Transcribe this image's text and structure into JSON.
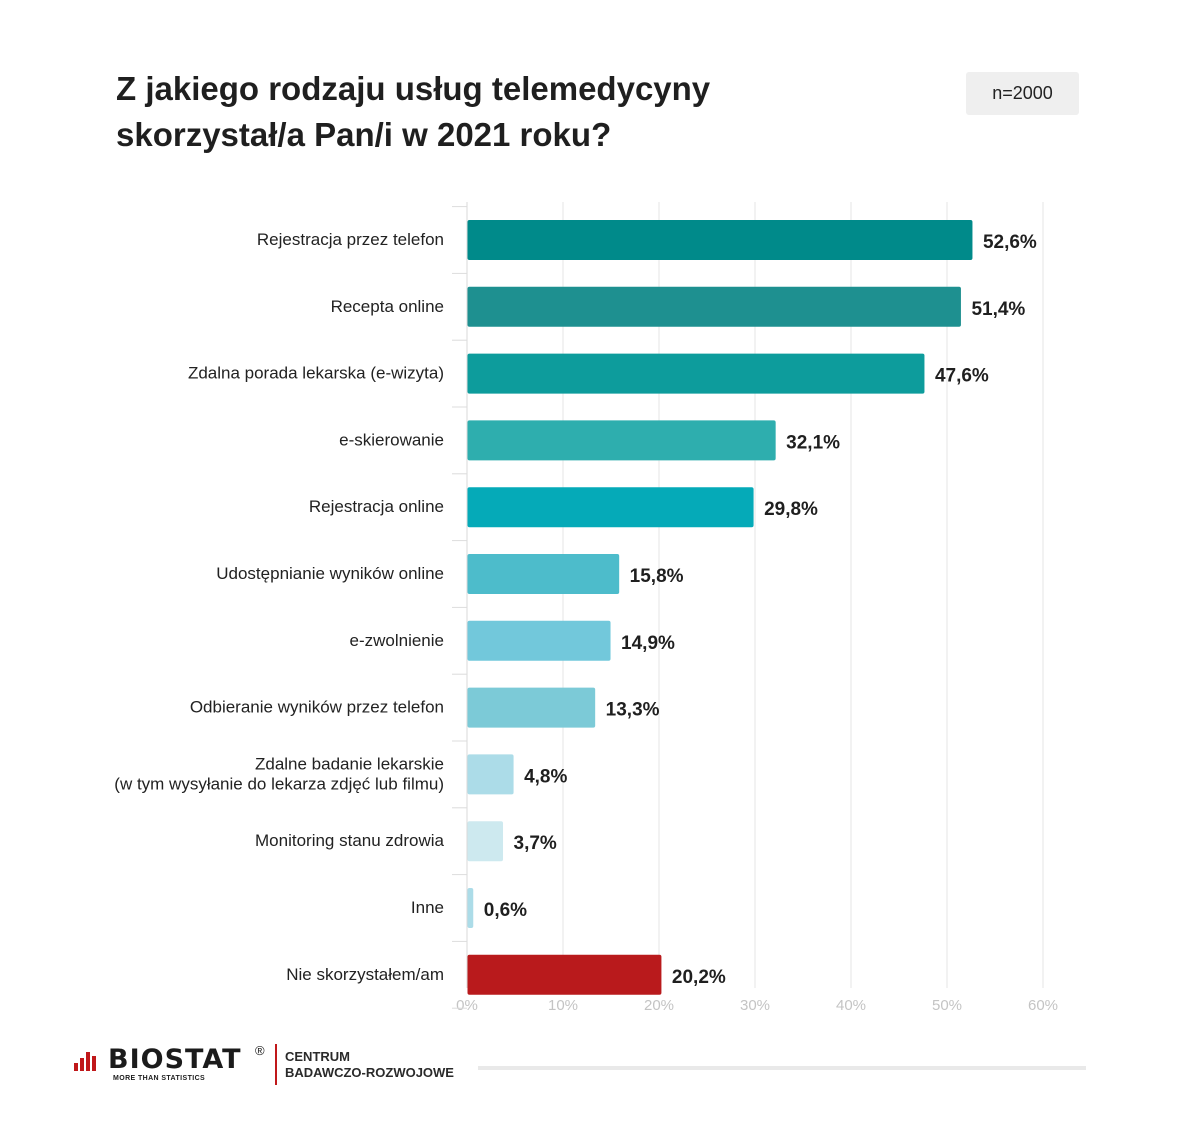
{
  "title": "Z jakiego rodzaju usług telemedycyny skorzystał/a Pan/i w 2021 roku?",
  "sample": "n=2000",
  "chart_data": {
    "type": "bar",
    "orientation": "horizontal",
    "title": "Z jakiego rodzaju usług telemedycyny skorzystał/a Pan/i w 2021 roku?",
    "xlim": [
      0,
      60
    ],
    "ticks": [
      "0%",
      "10%",
      "20%",
      "30%",
      "40%",
      "50%",
      "60%"
    ],
    "grid": true,
    "categories": [
      [
        "Rejestracja przez telefon"
      ],
      [
        "Recepta online"
      ],
      [
        "Zdalna porada lekarska (e-wizyta)"
      ],
      [
        "e-skierowanie"
      ],
      [
        "Rejestracja online"
      ],
      [
        "Udostępnianie wyników online"
      ],
      [
        "e-zwolnienie"
      ],
      [
        "Odbieranie wyników przez telefon"
      ],
      [
        "Zdalne badanie lekarskie",
        "(w tym wysyłanie do lekarza zdjęć lub filmu)"
      ],
      [
        "Monitoring stanu zdrowia"
      ],
      [
        "Inne"
      ],
      [
        "Nie skorzystałem/am"
      ]
    ],
    "values": [
      52.6,
      51.4,
      47.6,
      32.1,
      29.8,
      15.8,
      14.9,
      13.3,
      4.8,
      3.7,
      0.6,
      20.2
    ],
    "value_labels": [
      "52,6%",
      "51,4%",
      "47,6%",
      "32,1%",
      "29,8%",
      "15,8%",
      "14,9%",
      "13,3%",
      "4,8%",
      "3,7%",
      "0,6%",
      "20,2%"
    ],
    "colors": [
      "#008a8a",
      "#1e9090",
      "#0d9c9c",
      "#2eaeae",
      "#05aab8",
      "#4dbccb",
      "#72c8db",
      "#7ccad7",
      "#acdce8",
      "#cde9ef",
      "#acdce8",
      "#b91a1c"
    ]
  },
  "footer": {
    "brand": "BIOSTAT",
    "registered": "®",
    "tagline": "MORE THAN STATISTICS",
    "center_line1": "CENTRUM",
    "center_line2": "BADAWCZO-ROZWOJOWE",
    "brand_color": "#c0181a"
  }
}
